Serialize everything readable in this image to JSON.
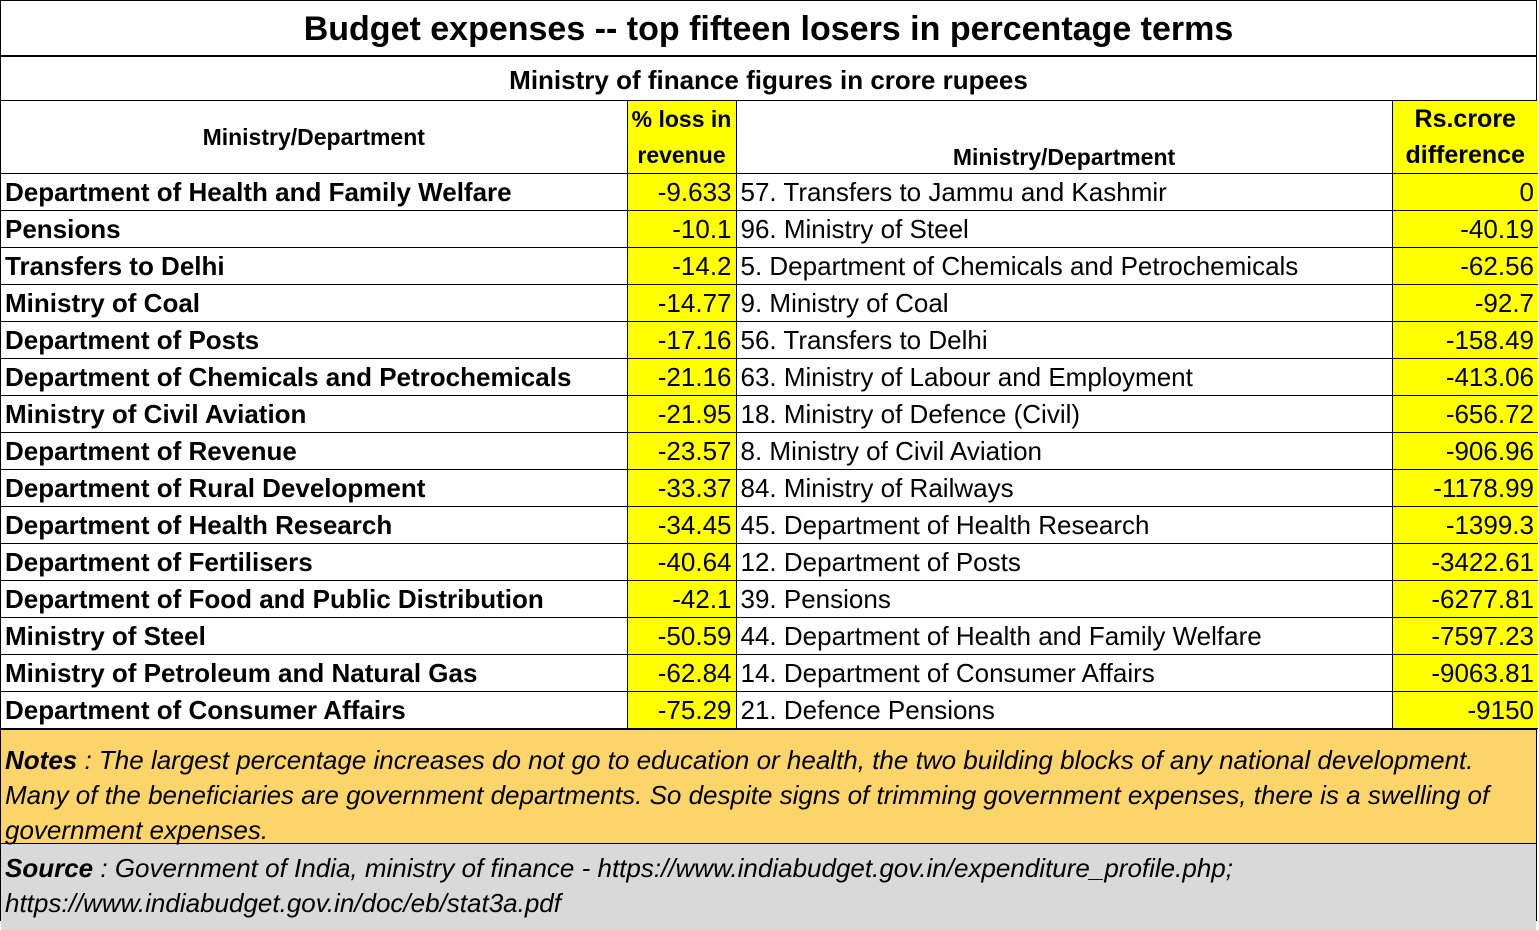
{
  "title": "Budget expenses -- top fifteen losers in percentage terms",
  "subtitle": "Ministry of finance figures in crore rupees",
  "headers": {
    "left_dept": "Ministry/Department",
    "pct_line1": "% loss in",
    "pct_line2": "revenue",
    "right_dept": "Ministry/Department",
    "diff_line1": "Rs.crore",
    "diff_line2": "difference"
  },
  "rows": [
    {
      "dept": "Department of Health and Family Welfare",
      "pct": "-9.633",
      "rank_dept": "57. Transfers to Jammu and Kashmir",
      "diff": "0"
    },
    {
      "dept": "Pensions",
      "pct": "-10.1",
      "rank_dept": "96. Ministry of Steel",
      "diff": "-40.19"
    },
    {
      "dept": "Transfers to Delhi",
      "pct": "-14.2",
      "rank_dept": "5. Department of Chemicals and Petrochemicals",
      "diff": "-62.56"
    },
    {
      "dept": "Ministry of Coal",
      "pct": "-14.77",
      "rank_dept": "9. Ministry of Coal",
      "diff": "-92.7"
    },
    {
      "dept": "Department of Posts",
      "pct": "-17.16",
      "rank_dept": "56. Transfers to Delhi",
      "diff": "-158.49"
    },
    {
      "dept": "Department of Chemicals and Petrochemicals",
      "pct": "-21.16",
      "rank_dept": "63. Ministry of Labour and Employment",
      "diff": "-413.06"
    },
    {
      "dept": "Ministry of Civil Aviation",
      "pct": "-21.95",
      "rank_dept": "18. Ministry of Defence (Civil)",
      "diff": "-656.72"
    },
    {
      "dept": "Department of Revenue",
      "pct": "-23.57",
      "rank_dept": "8. Ministry of Civil Aviation",
      "diff": "-906.96"
    },
    {
      "dept": "Department of Rural Development",
      "pct": "-33.37",
      "rank_dept": "84. Ministry of Railways",
      "diff": "-1178.99"
    },
    {
      "dept": "Department of Health Research",
      "pct": "-34.45",
      "rank_dept": "45. Department of Health Research",
      "diff": "-1399.3"
    },
    {
      "dept": "Department of Fertilisers",
      "pct": "-40.64",
      "rank_dept": "12. Department of Posts",
      "diff": "-3422.61"
    },
    {
      "dept": "Department of Food and Public Distribution",
      "pct": "-42.1",
      "rank_dept": "39. Pensions",
      "diff": "-6277.81"
    },
    {
      "dept": "Ministry of Steel",
      "pct": "-50.59",
      "rank_dept": "44. Department of Health and Family Welfare",
      "diff": "-7597.23"
    },
    {
      "dept": "Ministry of Petroleum and Natural Gas",
      "pct": "-62.84",
      "rank_dept": "14. Department of Consumer Affairs",
      "diff": "-9063.81"
    },
    {
      "dept": "Department of Consumer Affairs",
      "pct": "-75.29",
      "rank_dept": "21. Defence Pensions",
      "diff": "-9150"
    }
  ],
  "notes": {
    "label": "Notes",
    "text": " : The largest percentage increases do not go to education or health, the two building blocks of any national development. Many of the beneficiaries are government departments.  So despite signs of trimming government expenses, there is a swelling of government expenses."
  },
  "source": {
    "label": "Source",
    "text": " : Government of India, ministry of finance -  https://www.indiabudget.gov.in/expenditure_profile.php; https://www.indiabudget.gov.in/doc/eb/stat3a.pdf"
  },
  "colors": {
    "highlight": "#ffff00",
    "notes_bg": "#fcd56a",
    "source_bg": "#d9d9d9"
  }
}
